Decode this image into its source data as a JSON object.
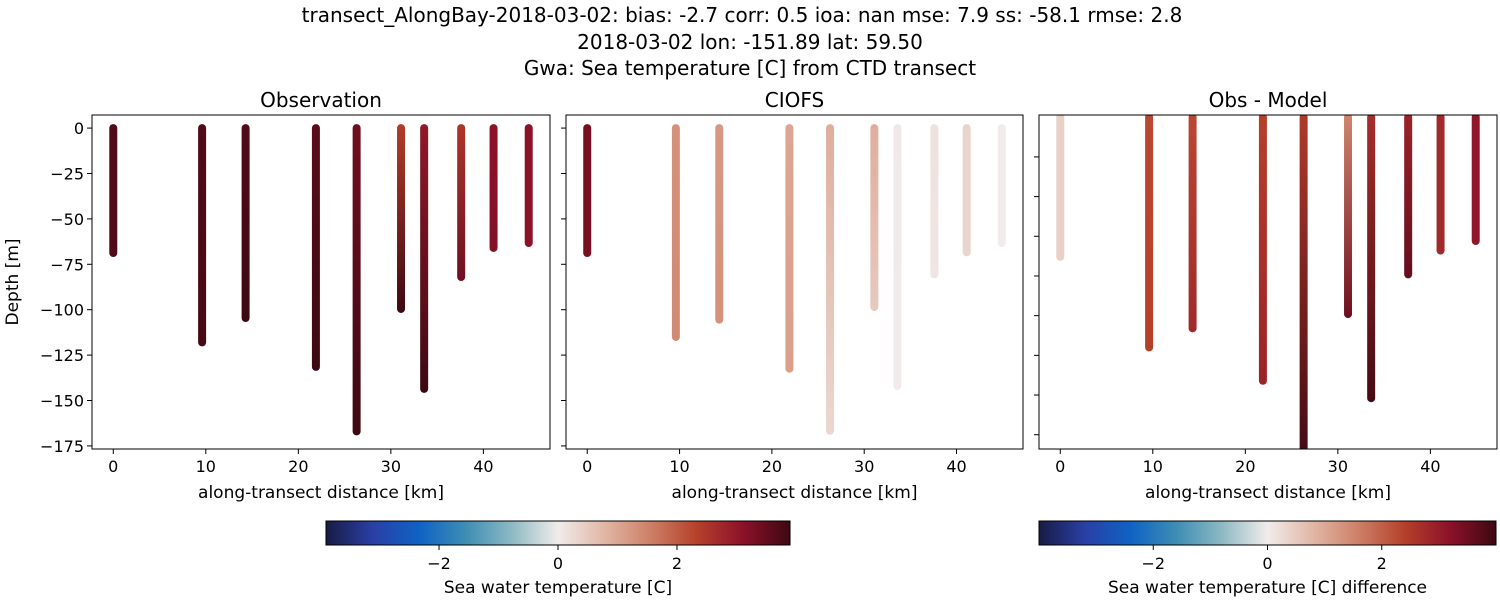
{
  "figure": {
    "title_lines": [
      "transect_AlongBay-2018-03-02: bias: -2.7  corr: 0.5  ioa: nan  mse: 7.9  ss: -58.1  rmse: 2.8",
      "2018-03-02 lon: -151.89 lat: 59.50",
      "Gwa: Sea temperature [C] from CTD transect"
    ]
  },
  "colormap": [
    "#181c43",
    "#2a3fa5",
    "#0f62c4",
    "#3d8db4",
    "#8db9c3",
    "#f1eceb",
    "#e1b6a5",
    "#cd7f66",
    "#b5402a",
    "#8b1129",
    "#3c0912"
  ],
  "chart_data": [
    {
      "type": "scatter",
      "title": "Observation",
      "xlabel": "along-transect distance [km]",
      "ylabel": "Depth [m]",
      "xlim": [
        -2.3,
        47.2
      ],
      "ylim": [
        -176.7,
        7.2
      ],
      "xticks": [
        0,
        10,
        20,
        30,
        40
      ],
      "yticks": [
        0,
        -25,
        -50,
        -75,
        -100,
        -125,
        -150,
        -175
      ],
      "ytick_labels": [
        "0",
        "−25",
        "−50",
        "−75",
        "−100",
        "−125",
        "−150",
        "−175"
      ],
      "clim": [
        -3.9,
        3.9
      ],
      "profiles": [
        {
          "x": 0,
          "max_depth": -68.8,
          "values": [
            3.7,
            3.7
          ]
        },
        {
          "x": 9.6,
          "max_depth": -118,
          "values": [
            3.7,
            3.8
          ]
        },
        {
          "x": 14.3,
          "max_depth": -104.6,
          "values": [
            3.7,
            3.9
          ]
        },
        {
          "x": 21.9,
          "max_depth": -131.5,
          "values": [
            3.6,
            3.9
          ]
        },
        {
          "x": 26.3,
          "max_depth": -167,
          "values": [
            3.4,
            3.9
          ]
        },
        {
          "x": 31.1,
          "max_depth": -99.6,
          "values": [
            2.4,
            3.9
          ]
        },
        {
          "x": 33.6,
          "max_depth": -143.6,
          "values": [
            3.0,
            3.9
          ]
        },
        {
          "x": 37.6,
          "max_depth": -82,
          "values": [
            2.5,
            3.4
          ]
        },
        {
          "x": 41.1,
          "max_depth": -66,
          "values": [
            3.1,
            3.2
          ]
        },
        {
          "x": 44.9,
          "max_depth": -63.3,
          "values": [
            3.1,
            3.1
          ]
        }
      ]
    },
    {
      "type": "scatter",
      "title": "CIOFS",
      "xlabel": "along-transect distance [km]",
      "xlim": [
        -2.3,
        47.2
      ],
      "ylim": [
        -176.7,
        7.2
      ],
      "xticks": [
        0,
        10,
        20,
        30,
        40
      ],
      "yticks": [
        0,
        -25,
        -50,
        -75,
        -100,
        -125,
        -150,
        -175
      ],
      "clim": [
        -3.9,
        3.9
      ],
      "profiles": [
        {
          "x": 0,
          "max_depth": -68.8,
          "values": [
            3.3,
            3.3
          ]
        },
        {
          "x": 9.6,
          "max_depth": -115,
          "values": [
            1.3,
            1.4
          ]
        },
        {
          "x": 14.3,
          "max_depth": -105.5,
          "values": [
            1.2,
            1.3
          ]
        },
        {
          "x": 21.9,
          "max_depth": -132.5,
          "values": [
            1.0,
            1.1
          ]
        },
        {
          "x": 26.3,
          "max_depth": -166.6,
          "values": [
            0.9,
            0.3
          ]
        },
        {
          "x": 31.1,
          "max_depth": -98.5,
          "values": [
            0.9,
            0.5
          ]
        },
        {
          "x": 33.6,
          "max_depth": -142,
          "values": [
            0.05,
            0.0
          ]
        },
        {
          "x": 37.6,
          "max_depth": -80.5,
          "values": [
            0.15,
            0.1
          ]
        },
        {
          "x": 41.1,
          "max_depth": -68.4,
          "values": [
            0.35,
            0.35
          ]
        },
        {
          "x": 44.9,
          "max_depth": -63.4,
          "values": [
            0.0,
            0.0
          ]
        }
      ]
    },
    {
      "type": "scatter",
      "title": "Obs - Model",
      "xlabel": "along-transect distance [km]",
      "xlim": [
        -2.3,
        47.2
      ],
      "ylim": [
        -209,
        1.4
      ],
      "xticks": [
        0,
        10,
        20,
        30,
        40
      ],
      "yticks": [
        -25,
        -50,
        -75,
        -100,
        -125,
        -150,
        -175,
        -200
      ],
      "clim": [
        -4,
        4
      ],
      "profiles": [
        {
          "x": 0,
          "max_depth": -88,
          "values": [
            0.4,
            0.4
          ]
        },
        {
          "x": 9.6,
          "max_depth": -145,
          "values": [
            2.3,
            2.4
          ]
        },
        {
          "x": 14.3,
          "max_depth": -133,
          "values": [
            2.3,
            2.8
          ]
        },
        {
          "x": 21.9,
          "max_depth": -166,
          "values": [
            2.4,
            2.9
          ]
        },
        {
          "x": 26.3,
          "max_depth": -209,
          "values": [
            2.5,
            3.9
          ]
        },
        {
          "x": 31.1,
          "max_depth": -124,
          "values": [
            1.5,
            3.5
          ]
        },
        {
          "x": 33.6,
          "max_depth": -177,
          "values": [
            2.7,
            3.9
          ]
        },
        {
          "x": 37.6,
          "max_depth": -99,
          "values": [
            2.9,
            3.6
          ]
        },
        {
          "x": 41.1,
          "max_depth": -84,
          "values": [
            2.8,
            2.8
          ]
        },
        {
          "x": 44.9,
          "max_depth": -78,
          "values": [
            3.1,
            3.1
          ]
        }
      ]
    }
  ],
  "colorbars": [
    {
      "label": "Sea water temperature [C]",
      "range": [
        -3.9,
        3.9
      ],
      "ticks": [
        -2,
        0,
        2
      ],
      "tick_labels": [
        "−2",
        "0",
        "2"
      ]
    },
    {
      "label": "Sea water temperature [C] difference",
      "range": [
        -4,
        4
      ],
      "ticks": [
        -2,
        0,
        2
      ],
      "tick_labels": [
        "−2",
        "0",
        "2"
      ]
    }
  ]
}
